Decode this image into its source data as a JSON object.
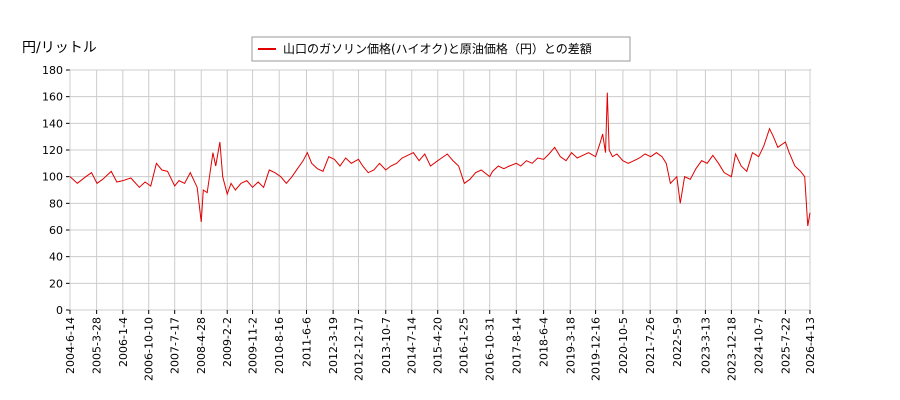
{
  "chart_data": {
    "type": "line",
    "ylabel": "円/リットル",
    "x": [
      "2004-6-14",
      "2004-9-1",
      "2004-12-1",
      "2005-2-1",
      "2005-4-1",
      "2005-6-1",
      "2005-9-1",
      "2005-11-1",
      "2006-1-4",
      "2006-4-1",
      "2006-7-1",
      "2006-9-1",
      "2006-11-1",
      "2007-1-1",
      "2007-3-1",
      "2007-5-1",
      "2007-7-17",
      "2007-9-1",
      "2007-11-1",
      "2008-1-1",
      "2008-3-15",
      "2008-4-28",
      "2008-5-20",
      "2008-7-1",
      "2008-9-1",
      "2008-10-1",
      "2008-11-15",
      "2008-12-15",
      "2009-2-2",
      "2009-3-15",
      "2009-5-1",
      "2009-7-1",
      "2009-9-1",
      "2009-11-2",
      "2010-1-1",
      "2010-3-1",
      "2010-5-1",
      "2010-7-1",
      "2010-9-1",
      "2010-11-1",
      "2011-1-1",
      "2011-3-1",
      "2011-5-1",
      "2011-6-15",
      "2011-8-1",
      "2011-10-1",
      "2011-12-1",
      "2012-2-1",
      "2012-4-1",
      "2012-6-1",
      "2012-8-1",
      "2012-10-1",
      "2012-12-17",
      "2013-2-1",
      "2013-4-1",
      "2013-6-1",
      "2013-8-1",
      "2013-10-7",
      "2013-12-1",
      "2014-2-1",
      "2014-4-1",
      "2014-6-1",
      "2014-8-1",
      "2014-10-1",
      "2014-12-1",
      "2015-2-1",
      "2015-4-20",
      "2015-6-1",
      "2015-8-1",
      "2015-10-1",
      "2015-12-1",
      "2016-2-1",
      "2016-4-1",
      "2016-6-1",
      "2016-8-1",
      "2016-10-31",
      "2016-12-1",
      "2017-2-1",
      "2017-4-1",
      "2017-6-1",
      "2017-8-14",
      "2017-10-1",
      "2017-12-1",
      "2018-2-1",
      "2018-4-1",
      "2018-6-4",
      "2018-8-1",
      "2018-10-1",
      "2018-12-1",
      "2019-2-1",
      "2019-4-1",
      "2019-6-1",
      "2019-8-1",
      "2019-10-1",
      "2019-12-16",
      "2020-2-1",
      "2020-3-1",
      "2020-4-1",
      "2020-4-20",
      "2020-5-10",
      "2020-6-15",
      "2020-8-1",
      "2020-10-5",
      "2020-12-1",
      "2021-2-1",
      "2021-4-1",
      "2021-6-1",
      "2021-8-1",
      "2021-10-1",
      "2021-12-1",
      "2022-1-15",
      "2022-3-1",
      "2022-5-9",
      "2022-6-15",
      "2022-8-1",
      "2022-10-1",
      "2022-12-1",
      "2023-2-1",
      "2023-4-1",
      "2023-6-1",
      "2023-8-1",
      "2023-10-1",
      "2023-12-18",
      "2024-2-1",
      "2024-4-1",
      "2024-6-1",
      "2024-8-1",
      "2024-10-7",
      "2024-12-1",
      "2025-2-1",
      "2025-3-15",
      "2025-5-1",
      "2025-7-22",
      "2025-9-1",
      "2025-11-1",
      "2026-1-1",
      "2026-2-15",
      "2026-3-20",
      "2026-4-13"
    ],
    "series": [
      {
        "name": "山口のガソリン価格(ハイオク)と原油価格（円）との差額",
        "color": "#e00000",
        "values": [
          100,
          95,
          100,
          103,
          95,
          98,
          104,
          96,
          97,
          99,
          92,
          96,
          93,
          110,
          105,
          104,
          93,
          97,
          95,
          103,
          92,
          66,
          90,
          88,
          118,
          108,
          126,
          100,
          87,
          95,
          90,
          95,
          97,
          92,
          96,
          92,
          105,
          103,
          100,
          95,
          100,
          106,
          112,
          118,
          110,
          106,
          104,
          115,
          113,
          108,
          114,
          110,
          113,
          108,
          103,
          105,
          110,
          105,
          108,
          110,
          114,
          116,
          118,
          112,
          117,
          108,
          112,
          114,
          117,
          112,
          108,
          95,
          98,
          103,
          105,
          100,
          104,
          108,
          106,
          108,
          110,
          108,
          112,
          110,
          114,
          113,
          117,
          122,
          115,
          112,
          118,
          114,
          116,
          118,
          115,
          125,
          132,
          118,
          163,
          120,
          115,
          117,
          112,
          110,
          112,
          114,
          117,
          115,
          118,
          115,
          110,
          95,
          100,
          80,
          100,
          98,
          106,
          112,
          110,
          116,
          110,
          103,
          100,
          117,
          108,
          104,
          118,
          115,
          123,
          136,
          130,
          122,
          126,
          118,
          108,
          104,
          100,
          63,
          73
        ]
      }
    ],
    "xlim": [
      "2004-6-14",
      "2026-4-13"
    ],
    "xticks": [
      "2004-6-14",
      "2005-3-28",
      "2006-1-4",
      "2006-10-10",
      "2007-7-17",
      "2008-4-28",
      "2009-2-2",
      "2009-11-2",
      "2010-8-16",
      "2011-6-6",
      "2012-3-19",
      "2012-12-17",
      "2013-10-7",
      "2014-7-14",
      "2015-4-20",
      "2016-1-25",
      "2016-10-31",
      "2017-8-14",
      "2018-6-4",
      "2019-3-18",
      "2019-12-16",
      "2020-10-5",
      "2021-7-26",
      "2022-5-9",
      "2023-3-13",
      "2023-12-18",
      "2024-10-7",
      "2025-7-22",
      "2026-4-13"
    ],
    "ylim": [
      0,
      180
    ],
    "yticks": [
      0,
      20,
      40,
      60,
      80,
      100,
      120,
      140,
      160,
      180
    ],
    "grid": true
  }
}
